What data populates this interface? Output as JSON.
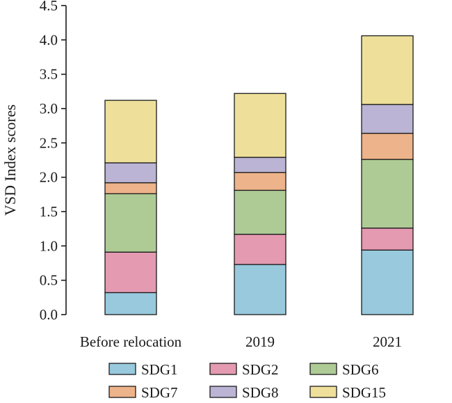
{
  "chart_data": {
    "type": "bar",
    "stacked": true,
    "categories": [
      "Before relocation",
      "2019",
      "2021"
    ],
    "series": [
      {
        "name": "SDG1",
        "color": "#98c9dd",
        "values": [
          0.32,
          0.73,
          0.94
        ]
      },
      {
        "name": "SDG2",
        "color": "#e49ab1",
        "values": [
          0.59,
          0.44,
          0.32
        ]
      },
      {
        "name": "SDG6",
        "color": "#aecb95",
        "values": [
          0.85,
          0.64,
          1.0
        ]
      },
      {
        "name": "SDG7",
        "color": "#edb38a",
        "values": [
          0.16,
          0.26,
          0.38
        ]
      },
      {
        "name": "SDG8",
        "color": "#bbb4d4",
        "values": [
          0.29,
          0.22,
          0.42
        ]
      },
      {
        "name": "SDG15",
        "color": "#eee09a",
        "values": [
          0.91,
          0.93,
          1.0
        ]
      }
    ],
    "ylabel": "VSD Index scores",
    "xlabel": "",
    "ylim": [
      0,
      4.5
    ],
    "yticks": [
      "0.0",
      "0.5",
      "1.0",
      "1.5",
      "2.0",
      "2.5",
      "3.0",
      "3.5",
      "4.0",
      "4.5"
    ],
    "grid": false,
    "legend_position": "bottom"
  }
}
